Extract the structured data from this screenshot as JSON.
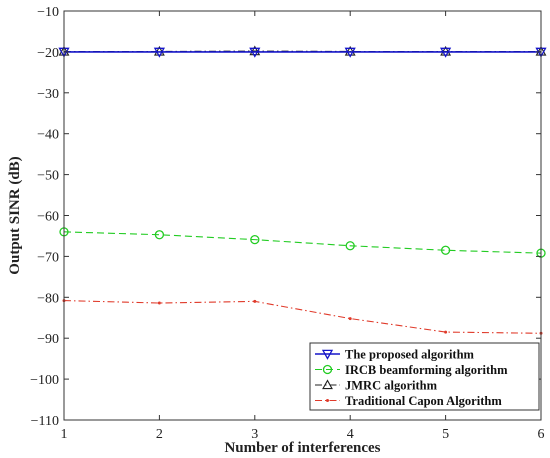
{
  "chart_data": {
    "type": "line",
    "title": "",
    "xlabel": "Number of interferences",
    "ylabel": "Output SINR (dB)",
    "xlim": [
      1,
      6
    ],
    "ylim": [
      -110,
      -10
    ],
    "xticks": [
      1,
      2,
      3,
      4,
      5,
      6
    ],
    "yticks": [
      -110,
      -100,
      -90,
      -80,
      -70,
      -60,
      -50,
      -40,
      -30,
      -20,
      -10
    ],
    "grid": false,
    "legend_position": "bottom-right",
    "x": [
      1,
      2,
      3,
      4,
      5,
      6
    ],
    "series": [
      {
        "name": "The proposed algorithm",
        "values": [
          -20,
          -20,
          -20,
          -20,
          -20,
          -20
        ],
        "color": "#1515c8",
        "marker": "triangle-down",
        "dash": "solid"
      },
      {
        "name": "IRCB beamforming algorithm",
        "values": [
          -64,
          -64.7,
          -65.9,
          -67.4,
          -68.5,
          -69.2
        ],
        "color": "#22cc22",
        "marker": "circle",
        "dash": "dashed"
      },
      {
        "name": "JMRC algorithm",
        "values": [
          -19.9,
          -19.9,
          -19.8,
          -19.9,
          -19.9,
          -19.9
        ],
        "color": "#222222",
        "marker": "triangle-up",
        "dash": "dashdot"
      },
      {
        "name": "Traditional Capon Algorithm",
        "values": [
          -80.8,
          -81.4,
          -81,
          -85.2,
          -88.5,
          -88.8
        ],
        "color": "#e03a2a",
        "marker": "dot",
        "dash": "dashdot"
      }
    ]
  }
}
